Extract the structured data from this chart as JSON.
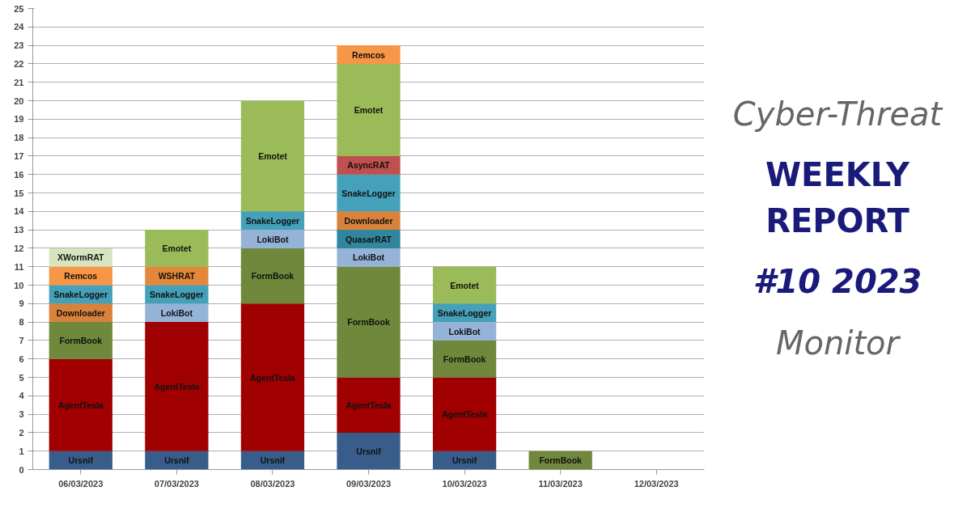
{
  "chart_data": {
    "type": "bar",
    "stacked": true,
    "categories": [
      "06/03/2023",
      "07/03/2023",
      "08/03/2023",
      "09/03/2023",
      "10/03/2023",
      "11/03/2023",
      "12/03/2023"
    ],
    "series": [
      {
        "name": "Ursnif",
        "color": "#385d8a",
        "values": [
          1,
          1,
          1,
          2,
          1,
          null,
          null
        ]
      },
      {
        "name": "AgentTesla",
        "color": "#a00000",
        "values": [
          5,
          7,
          8,
          3,
          4,
          null,
          null
        ]
      },
      {
        "name": "FormBook",
        "color": "#6f883b",
        "values": [
          2,
          null,
          3,
          6,
          2,
          1,
          null
        ]
      },
      {
        "name": "LokiBot",
        "color": "#95b3d7",
        "values": [
          null,
          1,
          1,
          1,
          1,
          null,
          null
        ]
      },
      {
        "name": "QuasarRAT",
        "color": "#31859c",
        "values": [
          null,
          null,
          null,
          1,
          null,
          null,
          null
        ]
      },
      {
        "name": "Downloader",
        "color": "#d9823b",
        "values": [
          1,
          null,
          null,
          1,
          null,
          null,
          null
        ]
      },
      {
        "name": "SnakeLogger",
        "color": "#45a0b9",
        "values": [
          1,
          1,
          1,
          2,
          1,
          null,
          null
        ]
      },
      {
        "name": "WSHRAT",
        "color": "#e3873b",
        "values": [
          null,
          1,
          null,
          null,
          null,
          null,
          null
        ]
      },
      {
        "name": "AsyncRAT",
        "color": "#c0504d",
        "values": [
          null,
          null,
          null,
          1,
          null,
          null,
          null
        ]
      },
      {
        "name": "Emotet",
        "color": "#9bbb59",
        "values": [
          null,
          2,
          6,
          5,
          2,
          null,
          null
        ]
      },
      {
        "name": "Remcos",
        "color": "#f79646",
        "values": [
          1,
          null,
          null,
          1,
          null,
          null,
          null
        ]
      },
      {
        "name": "XWormRAT",
        "color": "#d7e4bd",
        "values": [
          1,
          null,
          null,
          null,
          null,
          null,
          null
        ]
      }
    ],
    "ylim": [
      0,
      25
    ],
    "yticks": [
      0,
      1,
      2,
      3,
      4,
      5,
      6,
      7,
      8,
      9,
      10,
      11,
      12,
      13,
      14,
      15,
      16,
      17,
      18,
      19,
      20,
      21,
      22,
      23,
      24,
      25
    ],
    "grid": "y",
    "annotations": [
      "Cyber-Threat",
      "WEEKLY REPORT",
      "#10 2023",
      "Monitor"
    ]
  }
}
